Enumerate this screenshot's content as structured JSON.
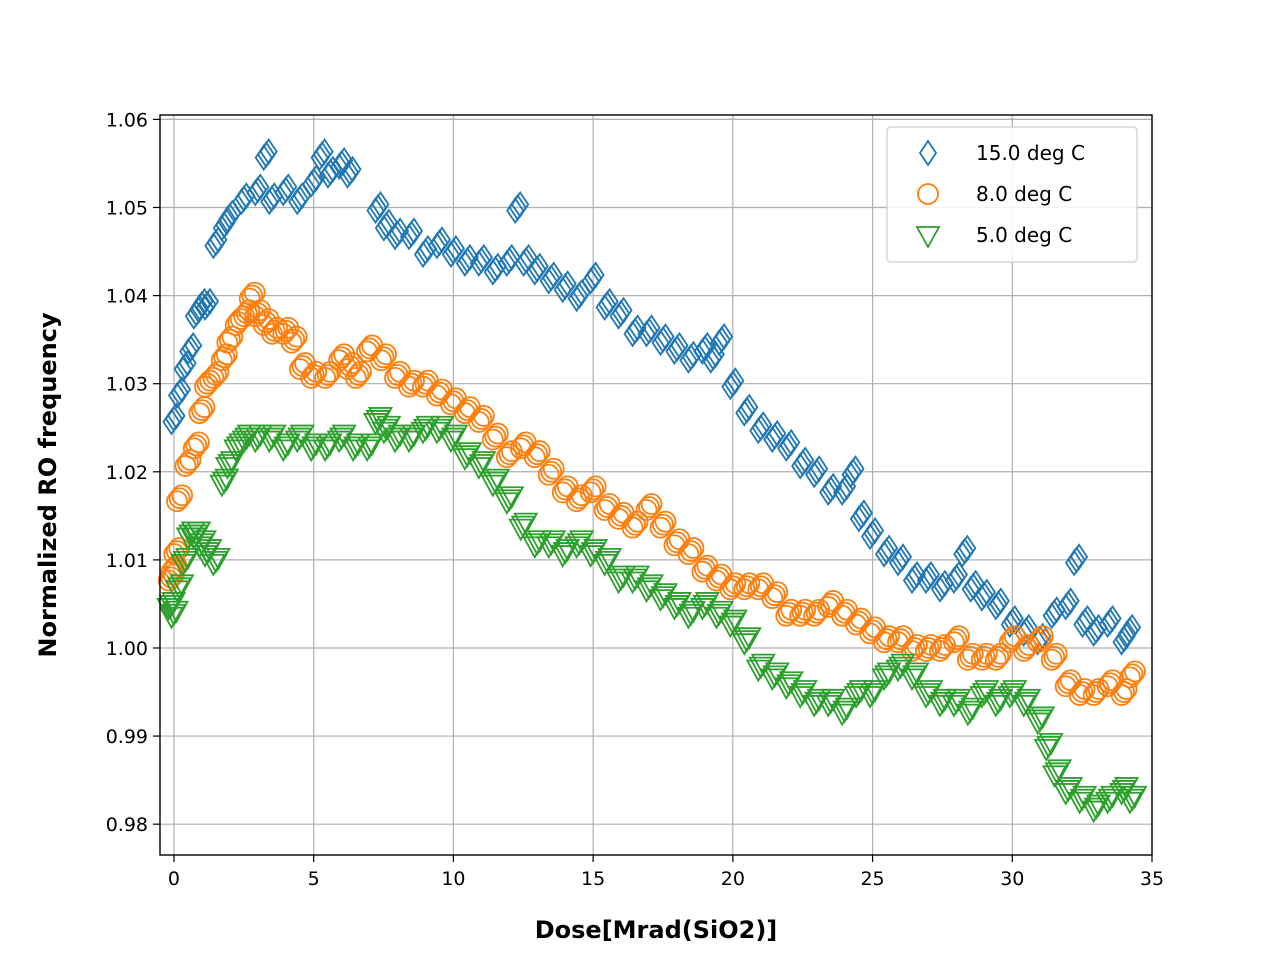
{
  "chart_data": {
    "type": "scatter",
    "title": "",
    "xlabel": "Dose[Mrad(SiO2)]",
    "ylabel": "Normalized RO frequency",
    "xlim": [
      -0.5,
      35
    ],
    "ylim": [
      0.9765,
      1.0605
    ],
    "xticks": [
      0,
      5,
      10,
      15,
      20,
      25,
      30,
      35
    ],
    "yticks": [
      0.98,
      0.99,
      1.0,
      1.01,
      1.02,
      1.03,
      1.04,
      1.05,
      1.06
    ],
    "xtick_labels": [
      "0",
      "5",
      "10",
      "15",
      "20",
      "25",
      "30",
      "35"
    ],
    "ytick_labels": [
      "0.98",
      "0.99",
      "1.00",
      "1.01",
      "1.02",
      "1.03",
      "1.04",
      "1.05",
      "1.06"
    ],
    "grid": true,
    "legend_position": "top-right",
    "series": [
      {
        "name": "15.0 deg C",
        "marker": "diamond",
        "color": "#1f77b4",
        "x": [
          0,
          0.2,
          0.4,
          0.6,
          0.8,
          1,
          1.2,
          1.5,
          1.8,
          2,
          2.5,
          3,
          3.3,
          3.5,
          4,
          4.5,
          5,
          5.3,
          5.6,
          6,
          6.3,
          7.3,
          7.6,
          8,
          8.5,
          9,
          9.5,
          10,
          10.5,
          11,
          11.5,
          12,
          12.3,
          12.6,
          13,
          13.5,
          14,
          14.5,
          15,
          15.5,
          16,
          16.5,
          17,
          17.5,
          18,
          18.5,
          19,
          19.3,
          19.6,
          20,
          20.5,
          21,
          21.5,
          22,
          22.5,
          23,
          23.5,
          24,
          24.3,
          24.6,
          25,
          25.5,
          26,
          26.5,
          27,
          27.5,
          28,
          28.3,
          28.6,
          29,
          29.5,
          30,
          30.5,
          31,
          31.5,
          32,
          32.3,
          32.6,
          33,
          33.5,
          34,
          34.2
        ],
        "y": [
          1.026,
          1.029,
          1.032,
          1.034,
          1.038,
          1.039,
          1.039,
          1.046,
          1.048,
          1.049,
          1.051,
          1.052,
          1.056,
          1.051,
          1.052,
          1.051,
          1.053,
          1.056,
          1.054,
          1.055,
          1.054,
          1.05,
          1.048,
          1.047,
          1.047,
          1.045,
          1.046,
          1.045,
          1.044,
          1.044,
          1.043,
          1.044,
          1.05,
          1.044,
          1.043,
          1.042,
          1.041,
          1.04,
          1.042,
          1.039,
          1.038,
          1.036,
          1.036,
          1.035,
          1.034,
          1.033,
          1.034,
          1.033,
          1.035,
          1.03,
          1.027,
          1.025,
          1.024,
          1.023,
          1.021,
          1.02,
          1.018,
          1.018,
          1.02,
          1.015,
          1.013,
          1.011,
          1.01,
          1.008,
          1.008,
          1.007,
          1.008,
          1.011,
          1.007,
          1.006,
          1.005,
          1.003,
          1.002,
          1.001,
          1.004,
          1.005,
          1.01,
          1.003,
          1.002,
          1.003,
          1.001,
          1.002
        ]
      },
      {
        "name": "8.0 deg C",
        "marker": "circle",
        "color": "#ff7f0e",
        "x": [
          -0.1,
          0,
          0.1,
          0.2,
          0.5,
          0.8,
          1,
          1.2,
          1.5,
          1.8,
          2,
          2.3,
          2.6,
          2.8,
          3,
          3.3,
          3.6,
          4,
          4.3,
          4.6,
          5,
          5.5,
          6,
          6.3,
          6.6,
          7,
          7.5,
          8,
          8.5,
          9,
          9.5,
          10,
          10.5,
          11,
          11.5,
          12,
          12.5,
          13,
          13.5,
          14,
          14.5,
          15,
          15.5,
          16,
          16.5,
          17,
          17.5,
          18,
          18.5,
          19,
          19.5,
          20,
          20.5,
          21,
          21.5,
          22,
          22.5,
          23,
          23.5,
          24,
          24.5,
          25,
          25.5,
          26,
          26.5,
          27,
          27.5,
          28,
          28.5,
          29,
          29.5,
          30,
          30.5,
          31,
          31.5,
          32,
          32.5,
          33,
          33.5,
          34,
          34.3
        ],
        "y": [
          1.008,
          1.009,
          1.011,
          1.017,
          1.021,
          1.023,
          1.027,
          1.03,
          1.031,
          1.033,
          1.035,
          1.037,
          1.038,
          1.04,
          1.038,
          1.037,
          1.036,
          1.036,
          1.035,
          1.032,
          1.031,
          1.031,
          1.033,
          1.032,
          1.031,
          1.034,
          1.033,
          1.031,
          1.03,
          1.03,
          1.029,
          1.028,
          1.027,
          1.026,
          1.024,
          1.022,
          1.023,
          1.022,
          1.02,
          1.018,
          1.017,
          1.018,
          1.016,
          1.015,
          1.014,
          1.016,
          1.014,
          1.012,
          1.011,
          1.009,
          1.008,
          1.007,
          1.007,
          1.007,
          1.006,
          1.004,
          1.004,
          1.004,
          1.005,
          1.004,
          1.003,
          1.002,
          1.001,
          1.001,
          1.0,
          1.0,
          1.0,
          1.001,
          0.999,
          0.999,
          0.999,
          1.001,
          1.0,
          1.001,
          0.999,
          0.996,
          0.995,
          0.995,
          0.996,
          0.995,
          0.997
        ]
      },
      {
        "name": "5.0 deg C",
        "marker": "triangle-down",
        "color": "#2ca02c",
        "x": [
          -0.1,
          0,
          0.2,
          0.4,
          0.6,
          0.8,
          1,
          1.2,
          1.5,
          1.8,
          2,
          2.3,
          2.6,
          3,
          3.5,
          4,
          4.5,
          5,
          5.5,
          6,
          6.5,
          7,
          7.3,
          7.6,
          8,
          8.5,
          9,
          9.5,
          10,
          10.5,
          11,
          11.5,
          12,
          12.5,
          13,
          13.5,
          14,
          14.5,
          15,
          15.5,
          16,
          16.5,
          17,
          17.5,
          18,
          18.5,
          19,
          19.5,
          20,
          20.5,
          21,
          21.5,
          22,
          22.5,
          23,
          23.5,
          24,
          24.5,
          25,
          25.5,
          26,
          26.5,
          27,
          27.5,
          28,
          28.5,
          29,
          29.5,
          30,
          30.5,
          31,
          31.3,
          31.6,
          32,
          32.5,
          33,
          33.5,
          34,
          34.3
        ],
        "y": [
          1.005,
          1.004,
          1.007,
          1.01,
          1.013,
          1.013,
          1.012,
          1.011,
          1.01,
          1.019,
          1.021,
          1.023,
          1.024,
          1.024,
          1.024,
          1.023,
          1.024,
          1.023,
          1.023,
          1.024,
          1.023,
          1.023,
          1.026,
          1.025,
          1.024,
          1.024,
          1.025,
          1.025,
          1.024,
          1.022,
          1.021,
          1.019,
          1.017,
          1.014,
          1.012,
          1.012,
          1.011,
          1.012,
          1.011,
          1.01,
          1.008,
          1.008,
          1.007,
          1.006,
          1.005,
          1.004,
          1.005,
          1.004,
          1.003,
          1.001,
          0.998,
          0.997,
          0.996,
          0.995,
          0.994,
          0.994,
          0.993,
          0.995,
          0.995,
          0.997,
          0.998,
          0.997,
          0.995,
          0.994,
          0.994,
          0.993,
          0.995,
          0.994,
          0.995,
          0.994,
          0.992,
          0.989,
          0.986,
          0.984,
          0.983,
          0.982,
          0.983,
          0.984,
          0.983
        ]
      }
    ]
  }
}
